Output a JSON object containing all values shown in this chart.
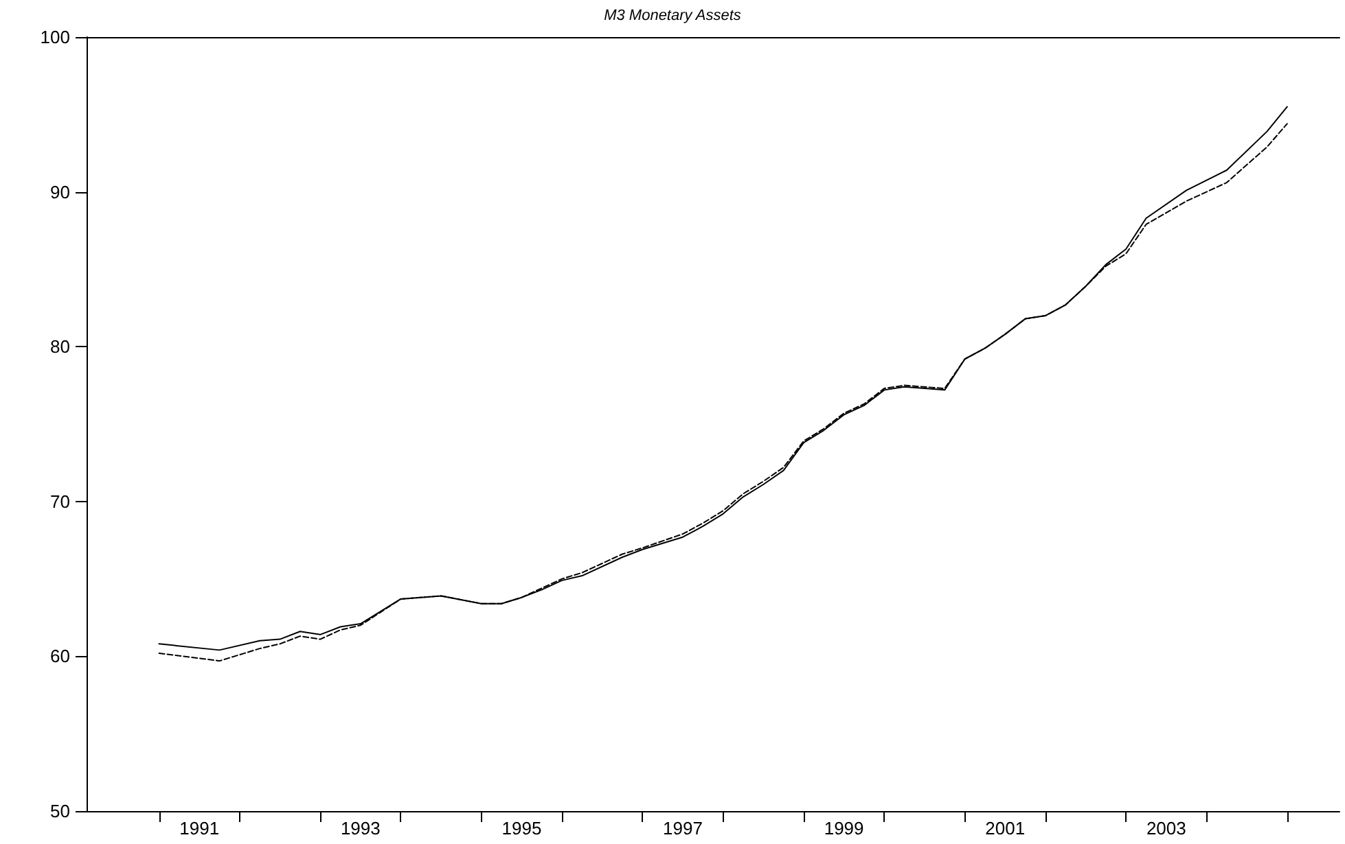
{
  "chart_data": {
    "type": "line",
    "title": "M3 Monetary Assets",
    "x": [
      1991.0,
      1991.75,
      1992.25,
      1992.5,
      1992.75,
      1993.0,
      1993.25,
      1993.5,
      1994.0,
      1994.5,
      1995.0,
      1995.25,
      1995.5,
      1995.75,
      1996.0,
      1996.25,
      1996.75,
      1997.0,
      1997.5,
      1997.75,
      1998.0,
      1998.25,
      1998.5,
      1998.75,
      1999.0,
      1999.25,
      1999.5,
      1999.75,
      2000.0,
      2000.25,
      2000.75,
      2001.0,
      2001.25,
      2001.5,
      2001.75,
      2002.0,
      2002.25,
      2002.5,
      2002.75,
      2003.0,
      2003.25,
      2003.75,
      2004.25,
      2004.75,
      2005.0
    ],
    "series": [
      {
        "color": "#000000",
        "line_style": "solid",
        "values": [
          60.8,
          60.4,
          61.0,
          61.1,
          61.6,
          61.4,
          61.9,
          62.1,
          63.7,
          63.9,
          63.4,
          63.4,
          63.8,
          64.3,
          64.9,
          65.2,
          66.4,
          66.9,
          67.7,
          68.4,
          69.2,
          70.3,
          71.1,
          72.0,
          73.8,
          74.6,
          75.6,
          76.2,
          77.2,
          77.4,
          77.2,
          79.2,
          79.9,
          80.8,
          81.8,
          82.0,
          82.7,
          83.9,
          85.3,
          86.3,
          88.3,
          90.1,
          91.4,
          93.9,
          95.5
        ]
      },
      {
        "color": "#000000",
        "line_style": "dashed",
        "values": [
          60.2,
          59.7,
          60.5,
          60.8,
          61.3,
          61.1,
          61.7,
          62.0,
          63.7,
          63.9,
          63.4,
          63.4,
          63.8,
          64.4,
          65.0,
          65.4,
          66.6,
          67.0,
          67.9,
          68.6,
          69.4,
          70.5,
          71.3,
          72.2,
          73.9,
          74.7,
          75.7,
          76.3,
          77.3,
          77.5,
          77.3,
          79.2,
          79.9,
          80.8,
          81.8,
          82.0,
          82.7,
          83.9,
          85.2,
          86.0,
          87.9,
          89.4,
          90.6,
          92.9,
          94.4
        ]
      }
    ],
    "xlim": [
      1990.1,
      2005.65
    ],
    "xticks": [
      {
        "value": 1991,
        "label": null
      },
      {
        "value": 1991.5,
        "label": "1991"
      },
      {
        "value": 1992,
        "label": null
      },
      {
        "value": 1993,
        "label": null
      },
      {
        "value": 1993.5,
        "label": "1993"
      },
      {
        "value": 1994,
        "label": null
      },
      {
        "value": 1995,
        "label": null
      },
      {
        "value": 1995.5,
        "label": "1995"
      },
      {
        "value": 1996,
        "label": null
      },
      {
        "value": 1997,
        "label": null
      },
      {
        "value": 1997.5,
        "label": "1997"
      },
      {
        "value": 1998,
        "label": null
      },
      {
        "value": 1999,
        "label": null
      },
      {
        "value": 1999.5,
        "label": "1999"
      },
      {
        "value": 2000,
        "label": null
      },
      {
        "value": 2001,
        "label": null
      },
      {
        "value": 2001.5,
        "label": "2001"
      },
      {
        "value": 2002,
        "label": null
      },
      {
        "value": 2003,
        "label": null
      },
      {
        "value": 2003.5,
        "label": "2003"
      },
      {
        "value": 2004,
        "label": null
      },
      {
        "value": 2005,
        "label": null
      }
    ],
    "ylim": [
      50,
      100
    ],
    "yticks": [
      50,
      60,
      70,
      80,
      90,
      100
    ],
    "grid": false,
    "marker": "none"
  }
}
